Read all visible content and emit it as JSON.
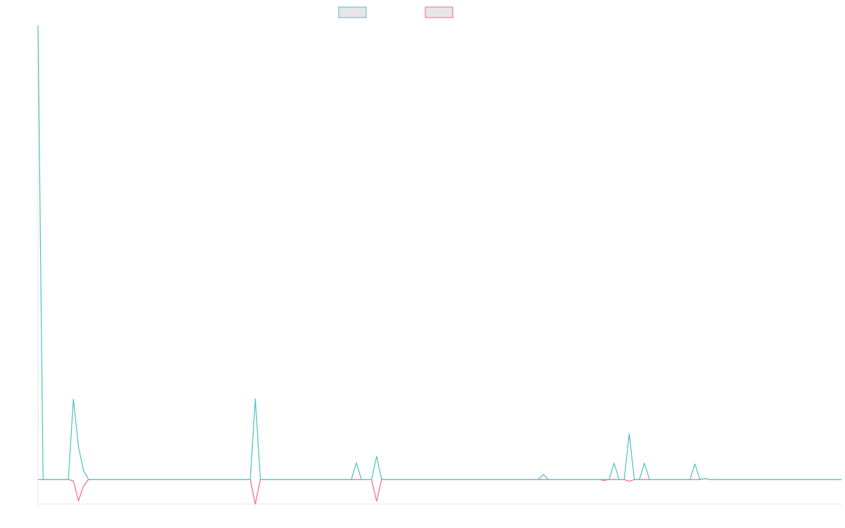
{
  "chart_data": {
    "type": "line",
    "categories": [
      null,
      null,
      null,
      null,
      null,
      null,
      null,
      null,
      null,
      null,
      null,
      null,
      null,
      null,
      null,
      null,
      null,
      null,
      null,
      null,
      null,
      null,
      null,
      null,
      null,
      null,
      null,
      null,
      null,
      null,
      null,
      null,
      null,
      null,
      null,
      null,
      null,
      null,
      null,
      null,
      null,
      null,
      null,
      null,
      null,
      null,
      null,
      null,
      null,
      null,
      null,
      null,
      null,
      null,
      null,
      null,
      null,
      null,
      null,
      null,
      null,
      null,
      null,
      null,
      null,
      null,
      null,
      null,
      null,
      null,
      null,
      null,
      null,
      null,
      null,
      null,
      null,
      null,
      null,
      null,
      null,
      null,
      null,
      null,
      null,
      null,
      null,
      null,
      null,
      null,
      null,
      null,
      null,
      null,
      null,
      null,
      null,
      null,
      null,
      null,
      null,
      null,
      null,
      null,
      null,
      null,
      null,
      null,
      null,
      null,
      null,
      null,
      null,
      null,
      null,
      null,
      null,
      null,
      null,
      null,
      null,
      null,
      null,
      null,
      null,
      null,
      null,
      null,
      null,
      null,
      null,
      null,
      null,
      null,
      null,
      null,
      null,
      null,
      null,
      null,
      null,
      null,
      null,
      null,
      null,
      null,
      null,
      null,
      null,
      null,
      null,
      null,
      null,
      null,
      null,
      null,
      null,
      null,
      null,
      null
    ],
    "series": [
      {
        "color": "#4bc0c0",
        "values": [
          100,
          0,
          0,
          0,
          0,
          0,
          0,
          17.7,
          7.3,
          2,
          0,
          0,
          0,
          0,
          0,
          0,
          0,
          0,
          0,
          0,
          0,
          0,
          0,
          0,
          0,
          0,
          0,
          0,
          0,
          0,
          0,
          0,
          0,
          0,
          0,
          0,
          0,
          0,
          0,
          0,
          0,
          0,
          0,
          17.8,
          0,
          0,
          0,
          0,
          0,
          0,
          0,
          0,
          0,
          0,
          0,
          0,
          0,
          0,
          0,
          0,
          0,
          0,
          0,
          3.7,
          0,
          0,
          0,
          5.1,
          0,
          0,
          0,
          0,
          0,
          0,
          0,
          0,
          0,
          0,
          0,
          0,
          0,
          0,
          0,
          0,
          0,
          0,
          0,
          0,
          0,
          0,
          0,
          0,
          0,
          0,
          0,
          0,
          0,
          0,
          0,
          0,
          1.1,
          0,
          0,
          0,
          0,
          0,
          0,
          0,
          0,
          0,
          0,
          0,
          0,
          0,
          3.6,
          0,
          0,
          10.1,
          0,
          0,
          3.6,
          0,
          0,
          0,
          0,
          0,
          0,
          0,
          0,
          0,
          3.4,
          0,
          0.2,
          0,
          0,
          0,
          0,
          0,
          0,
          0,
          0,
          0,
          0,
          0,
          0,
          0,
          0,
          0,
          0,
          0,
          0,
          0,
          0,
          0,
          0,
          0,
          0,
          0,
          0,
          0
        ]
      },
      {
        "color": "#ff6384",
        "values": [
          0,
          0,
          0,
          0,
          0,
          0,
          0,
          -0.3,
          -4.7,
          -1.4,
          0,
          0,
          0,
          0,
          0,
          0,
          0,
          0,
          0,
          0,
          0,
          0,
          0,
          0,
          0,
          0,
          0,
          0,
          0,
          0,
          0,
          0,
          0,
          0,
          0,
          0,
          0,
          0,
          0,
          0,
          0,
          0,
          0,
          -5.4,
          0,
          0,
          0,
          0,
          0,
          0,
          0,
          0,
          0,
          0,
          0,
          0,
          0,
          0,
          0,
          0,
          0,
          0,
          0,
          0,
          0,
          0,
          0,
          -4.8,
          0,
          0,
          0,
          0,
          0,
          0,
          0,
          0,
          0,
          0,
          0,
          0,
          0,
          0,
          0,
          0,
          0,
          0,
          0,
          0,
          0,
          0,
          0,
          0,
          0,
          0,
          0,
          0,
          0,
          0,
          0,
          0,
          0,
          0,
          0,
          0,
          0,
          0,
          0,
          0,
          0,
          0,
          0,
          0,
          -0.2,
          0,
          0,
          0,
          0,
          -0.4,
          0,
          0,
          0,
          0,
          0,
          0,
          0,
          0,
          0,
          0,
          0,
          0,
          0,
          0,
          0.2,
          0,
          0,
          0,
          0,
          0,
          0,
          0,
          0,
          0,
          0,
          0,
          0,
          0,
          0,
          0,
          0,
          0,
          0,
          0,
          0,
          0,
          0,
          0,
          0,
          0,
          0,
          0
        ]
      }
    ],
    "ylim": [
      -5.4,
      100
    ]
  }
}
